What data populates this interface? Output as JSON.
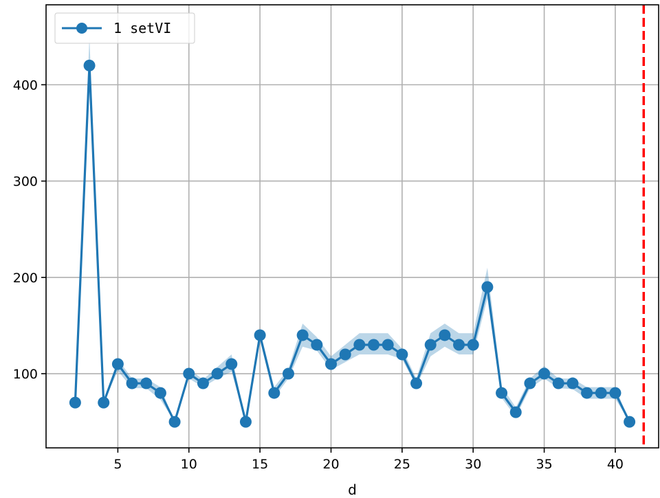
{
  "chart_data": {
    "type": "line",
    "title": "",
    "xlabel": "d",
    "ylabel": "",
    "xlim": [
      -0.05,
      43.05
    ],
    "ylim": [
      23,
      483
    ],
    "xticks": [
      5,
      10,
      15,
      20,
      25,
      30,
      35,
      40
    ],
    "yticks": [
      100,
      200,
      300,
      400
    ],
    "grid": true,
    "legend_position": "top-left",
    "series": [
      {
        "name": "1 setVI",
        "color": "#1f77b4",
        "band_color": "#1f77b4",
        "marker": "circle",
        "x": [
          2,
          3,
          4,
          5,
          6,
          7,
          8,
          9,
          10,
          11,
          12,
          13,
          14,
          15,
          16,
          17,
          18,
          19,
          20,
          21,
          22,
          23,
          24,
          25,
          26,
          27,
          28,
          29,
          30,
          31,
          32,
          33,
          34,
          35,
          36,
          37,
          38,
          39,
          40,
          41
        ],
        "values": [
          70,
          420,
          70,
          110,
          90,
          90,
          80,
          50,
          100,
          90,
          100,
          110,
          50,
          140,
          80,
          100,
          140,
          130,
          110,
          120,
          130,
          130,
          130,
          120,
          90,
          130,
          140,
          130,
          130,
          190,
          80,
          60,
          90,
          100,
          90,
          90,
          80,
          80,
          80,
          50
        ],
        "lower": [
          70,
          400,
          70,
          103,
          85,
          85,
          73,
          50,
          95,
          86,
          95,
          102,
          50,
          135,
          75,
          95,
          128,
          124,
          104,
          112,
          120,
          120,
          120,
          115,
          87,
          118,
          128,
          120,
          120,
          178,
          75,
          55,
          85,
          95,
          85,
          84,
          74,
          74,
          74,
          50
        ],
        "upper": [
          70,
          450,
          70,
          115,
          95,
          95,
          86,
          50,
          105,
          94,
          107,
          120,
          50,
          145,
          86,
          105,
          152,
          138,
          118,
          130,
          142,
          142,
          142,
          126,
          95,
          142,
          152,
          142,
          142,
          210,
          87,
          65,
          95,
          108,
          95,
          95,
          86,
          86,
          86,
          50
        ]
      }
    ],
    "reference_line": {
      "x": 42,
      "color": "#ff0000",
      "style": "dashed"
    }
  }
}
